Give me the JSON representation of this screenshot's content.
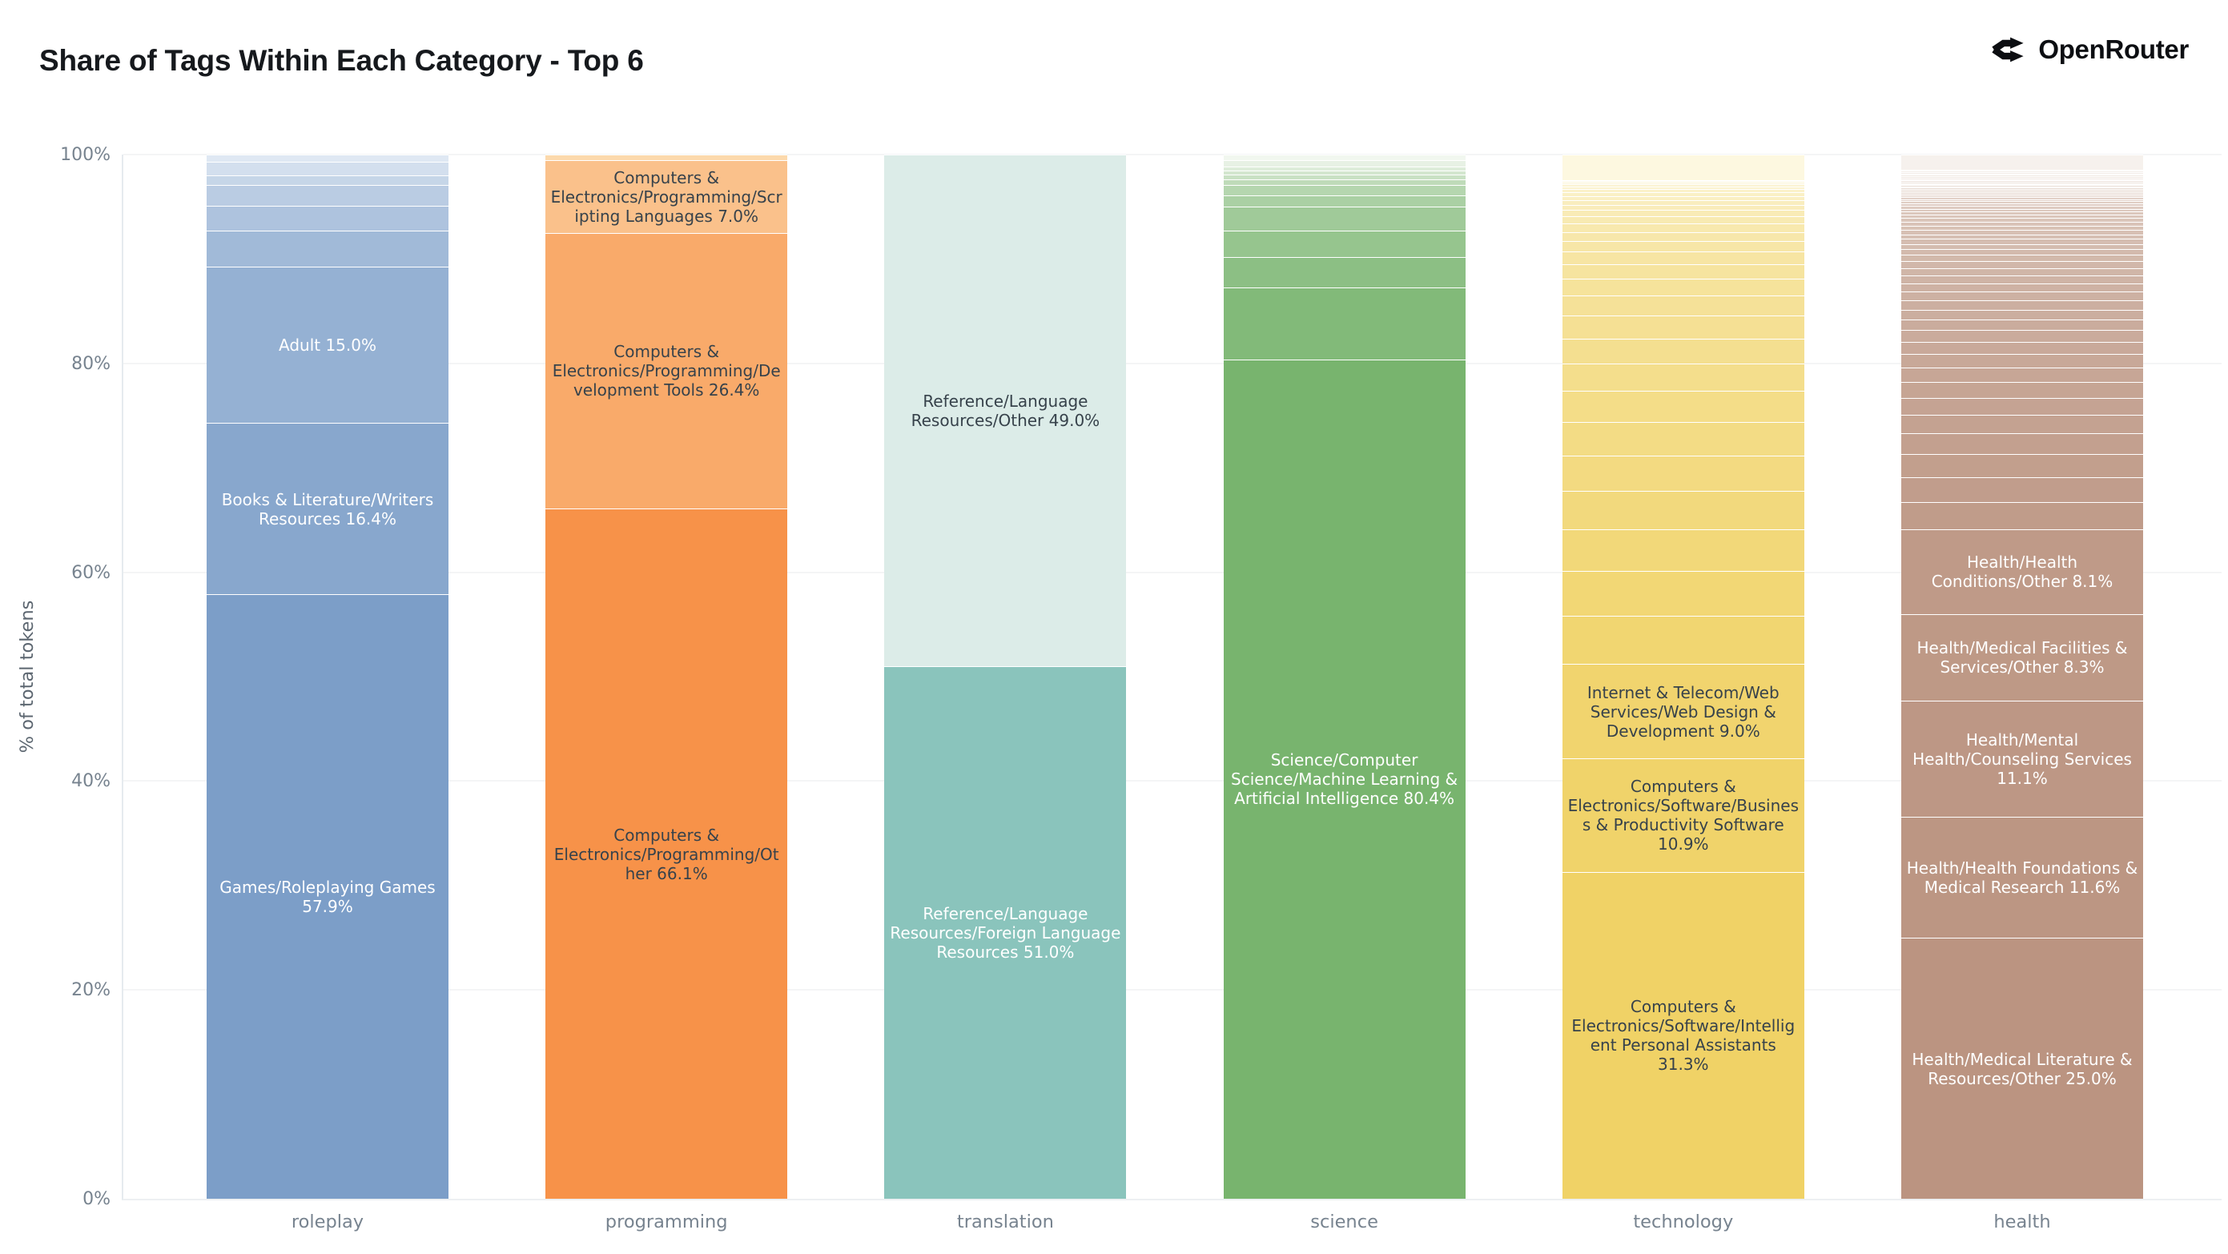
{
  "brand": {
    "name": "OpenRouter",
    "icon": "openrouter-fork-icon",
    "color": "#0c0e12"
  },
  "colors": {
    "background": "#ffffff",
    "title_text": "#16191d",
    "axis_text": "#77838f",
    "axis_title_text": "#5c6670",
    "gridline": "#f4f5f6",
    "segment_divider": "#ffffff",
    "dark_label_text": "#37424b",
    "light_label_text": "#ffffff"
  },
  "chart_data": {
    "type": "bar",
    "stacked": true,
    "normalized": true,
    "title": "Share of Tags Within Each Category - Top 6",
    "xlabel": "",
    "ylabel": "% of total tokens",
    "ylim": [
      0,
      100
    ],
    "grid": true,
    "legend": "none",
    "unit": "%",
    "yticks": [
      "0%",
      "20%",
      "40%",
      "60%",
      "80%",
      "100%"
    ],
    "categories": [
      "roleplay",
      "programming",
      "translation",
      "science",
      "technology",
      "health"
    ],
    "bars": [
      {
        "category": "roleplay",
        "color_dark": "#7c9ec8",
        "color_light": "#dfe8f3",
        "label_color": "#ffffff",
        "segments": [
          {
            "label": "Games/Roleplaying Games 57.9%",
            "value": 57.9
          },
          {
            "label": "Books & Literature/Writers Resources 16.4%",
            "value": 16.4
          },
          {
            "label": "Adult 15.0%",
            "value": 15.0
          },
          {
            "label": "",
            "value": 3.4
          },
          {
            "label": "",
            "value": 2.4
          },
          {
            "label": "",
            "value": 2.0
          },
          {
            "label": "",
            "value": 0.9
          },
          {
            "label": "",
            "value": 1.3
          },
          {
            "label": "",
            "value": 0.7
          }
        ]
      },
      {
        "category": "programming",
        "color_dark": "#f79249",
        "color_light": "#fcd9ac",
        "label_color": "#37424b",
        "segments": [
          {
            "label": "Computers & Electronics/Programming/Other 66.1%",
            "value": 66.1
          },
          {
            "label": "Computers & Electronics/Programming/Development Tools 26.4%",
            "value": 26.4
          },
          {
            "label": "Computers & Electronics/Programming/Scripting Languages 7.0%",
            "value": 7.0
          },
          {
            "label": "",
            "value": 0.5
          }
        ]
      },
      {
        "category": "translation",
        "color_dark": "#8ac4bc",
        "color_light": "#dcece8",
        "label_color": "#ffffff",
        "segments": [
          {
            "label": "Reference/Language Resources/Foreign Language Resources 51.0%",
            "value": 51.0,
            "text_color": "#ffffff"
          },
          {
            "label": "Reference/Language Resources/Other 49.0%",
            "value": 49.0,
            "text_color": "#37424b"
          }
        ]
      },
      {
        "category": "science",
        "color_dark": "#78b46e",
        "color_light": "#f1f7ef",
        "label_color": "#ffffff",
        "segments": [
          {
            "label": "Science/Computer Science/Machine Learning & Artificial Intelligence 80.4%",
            "value": 80.4
          },
          {
            "label": "",
            "value": 6.9
          },
          {
            "label": "",
            "value": 2.9
          },
          {
            "label": "",
            "value": 2.5
          },
          {
            "label": "",
            "value": 2.3
          },
          {
            "label": "",
            "value": 1.1
          },
          {
            "label": "",
            "value": 1.0
          },
          {
            "label": "",
            "value": 0.5
          },
          {
            "label": "",
            "value": 0.45
          },
          {
            "label": "",
            "value": 0.4
          },
          {
            "label": "",
            "value": 0.4
          },
          {
            "label": "",
            "value": 0.6
          },
          {
            "label": "",
            "value": 0.55
          }
        ]
      },
      {
        "category": "technology",
        "color_dark": "#f0d266",
        "color_light": "#fdf8e0",
        "label_color": "#37424b",
        "segments": [
          {
            "label": "Computers & Electronics/Software/Intelligent Personal Assistants 31.3%",
            "value": 31.3
          },
          {
            "label": "Computers & Electronics/Software/Business & Productivity Software 10.9%",
            "value": 10.9
          },
          {
            "label": "Internet & Telecom/Web Services/Web Design & Development 9.0%",
            "value": 9.0
          },
          {
            "label": "",
            "value": 4.6
          },
          {
            "label": "",
            "value": 4.3
          },
          {
            "label": "",
            "value": 4.0
          },
          {
            "label": "",
            "value": 3.7
          },
          {
            "label": "",
            "value": 3.4
          },
          {
            "label": "",
            "value": 3.2
          },
          {
            "label": "",
            "value": 3.0
          },
          {
            "label": "",
            "value": 2.6
          },
          {
            "label": "",
            "value": 2.4
          },
          {
            "label": "",
            "value": 2.2
          },
          {
            "label": "",
            "value": 1.9
          },
          {
            "label": "",
            "value": 1.6
          },
          {
            "label": "",
            "value": 1.4
          },
          {
            "label": "",
            "value": 1.2
          },
          {
            "label": "",
            "value": 1.0
          },
          {
            "label": "",
            "value": 0.9
          },
          {
            "label": "",
            "value": 0.8
          },
          {
            "label": "",
            "value": 0.7
          },
          {
            "label": "",
            "value": 0.6
          },
          {
            "label": "",
            "value": 0.5
          },
          {
            "label": "",
            "value": 0.45
          },
          {
            "label": "",
            "value": 0.4
          },
          {
            "label": "",
            "value": 0.35
          },
          {
            "label": "",
            "value": 0.3
          },
          {
            "label": "",
            "value": 0.25
          },
          {
            "label": "",
            "value": 0.2
          },
          {
            "label": "",
            "value": 0.2
          },
          {
            "label": "",
            "value": 0.15
          },
          {
            "label": "",
            "value": 0.1
          },
          {
            "label": "",
            "value": 2.4
          }
        ]
      },
      {
        "category": "health",
        "color_dark": "#bb9481",
        "color_light": "#f6f1ed",
        "label_color": "#ffffff",
        "segments": [
          {
            "label": "Health/Medical Literature & Resources/Other 25.0%",
            "value": 25.0
          },
          {
            "label": "Health/Health Foundations & Medical Research 11.6%",
            "value": 11.6
          },
          {
            "label": "Health/Mental Health/Counseling Services 11.1%",
            "value": 11.1
          },
          {
            "label": "Health/Medical Facilities & Services/Other 8.3%",
            "value": 8.3
          },
          {
            "label": "Health/Health Conditions/Other 8.1%",
            "value": 8.1
          },
          {
            "label": "",
            "value": 2.6
          },
          {
            "label": "",
            "value": 2.4
          },
          {
            "label": "",
            "value": 2.2
          },
          {
            "label": "",
            "value": 2.0
          },
          {
            "label": "",
            "value": 1.8
          },
          {
            "label": "",
            "value": 1.6
          },
          {
            "label": "",
            "value": 1.5
          },
          {
            "label": "",
            "value": 1.4
          },
          {
            "label": "",
            "value": 1.3
          },
          {
            "label": "",
            "value": 1.2
          },
          {
            "label": "",
            "value": 1.1
          },
          {
            "label": "",
            "value": 1.0
          },
          {
            "label": "",
            "value": 0.95
          },
          {
            "label": "",
            "value": 0.9
          },
          {
            "label": "",
            "value": 0.85
          },
          {
            "label": "",
            "value": 0.8
          },
          {
            "label": "",
            "value": 0.75
          },
          {
            "label": "",
            "value": 0.7
          },
          {
            "label": "",
            "value": 0.65
          },
          {
            "label": "",
            "value": 0.6
          },
          {
            "label": "",
            "value": 0.55
          },
          {
            "label": "",
            "value": 0.5
          },
          {
            "label": "",
            "value": 0.48
          },
          {
            "label": "",
            "value": 0.45
          },
          {
            "label": "",
            "value": 0.42
          },
          {
            "label": "",
            "value": 0.4
          },
          {
            "label": "",
            "value": 0.38
          },
          {
            "label": "",
            "value": 0.35
          },
          {
            "label": "",
            "value": 0.32
          },
          {
            "label": "",
            "value": 0.3
          },
          {
            "label": "",
            "value": 0.28
          },
          {
            "label": "",
            "value": 0.26
          },
          {
            "label": "",
            "value": 0.24
          },
          {
            "label": "",
            "value": 0.22
          },
          {
            "label": "",
            "value": 0.2
          },
          {
            "label": "",
            "value": 0.19
          },
          {
            "label": "",
            "value": 0.18
          },
          {
            "label": "",
            "value": 0.17
          },
          {
            "label": "",
            "value": 0.16
          },
          {
            "label": "",
            "value": 0.15
          },
          {
            "label": "",
            "value": 0.14
          },
          {
            "label": "",
            "value": 0.13
          },
          {
            "label": "",
            "value": 0.12
          },
          {
            "label": "",
            "value": 0.11
          },
          {
            "label": "",
            "value": 0.1
          },
          {
            "label": "",
            "value": 0.1
          },
          {
            "label": "",
            "value": 0.13
          },
          {
            "label": "",
            "value": 0.13
          },
          {
            "label": "",
            "value": 0.13
          },
          {
            "label": "",
            "value": 0.13
          },
          {
            "label": "",
            "value": 0.13
          },
          {
            "label": "",
            "value": 0.13
          },
          {
            "label": "",
            "value": 0.13
          },
          {
            "label": "",
            "value": 0.13
          },
          {
            "label": "",
            "value": 0.13
          },
          {
            "label": "",
            "value": 0.13
          },
          {
            "label": "",
            "value": 1.4
          }
        ]
      }
    ]
  }
}
